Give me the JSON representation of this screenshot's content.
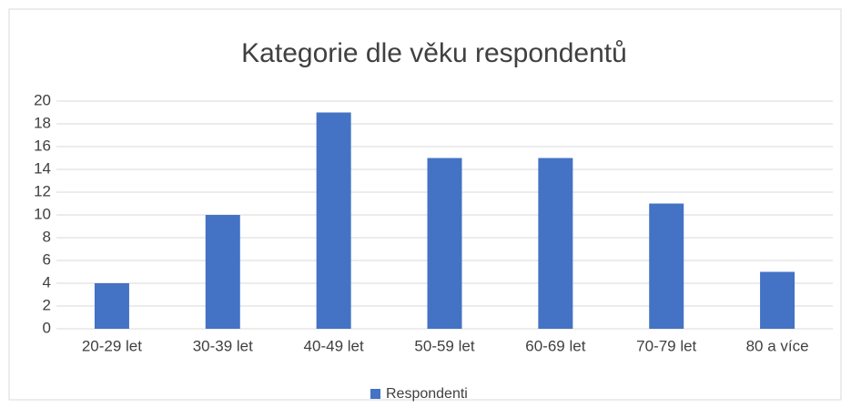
{
  "chart_data": {
    "type": "bar",
    "title": "Kategorie dle věku respondentů",
    "categories": [
      "20-29 let",
      "30-39 let",
      "40-49 let",
      "50-59 let",
      "60-69 let",
      "70-79 let",
      "80 a více"
    ],
    "series": [
      {
        "name": "Respondenti",
        "color": "#4472c4",
        "values": [
          4,
          10,
          19,
          15,
          15,
          11,
          5
        ]
      }
    ],
    "ylim": [
      0,
      20
    ],
    "yticks": [
      0,
      2,
      4,
      6,
      8,
      10,
      12,
      14,
      16,
      18,
      20
    ],
    "grid": true,
    "legend": "bottom"
  }
}
